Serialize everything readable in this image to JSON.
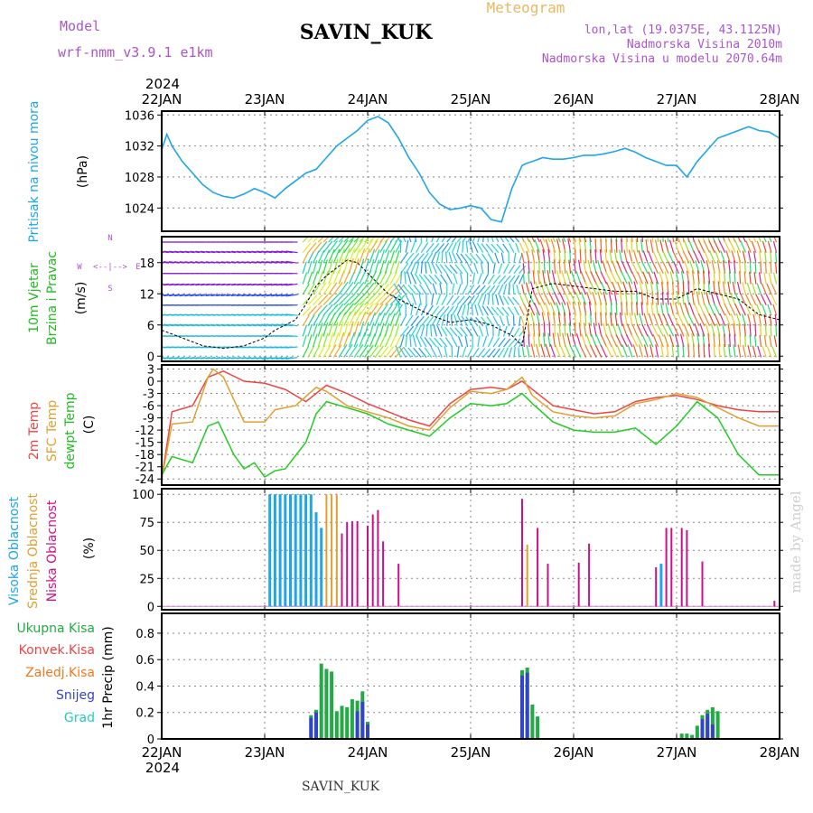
{
  "header": {
    "model_label": "Model",
    "model_name": "wrf-nmm_v3.9.1  e1km",
    "station": "SAVIN_KUK",
    "meteogram_label": "Meteogram",
    "lonlat": "lon,lat (19.0375E, 43.1125N)",
    "altitude": "Nadmorska Visina 2010m",
    "model_altitude": "Nadmorska Visina u modelu 2070.64m",
    "year_top": "2024",
    "year_bottom": "2024",
    "footer_station": "SAVIN_KUK",
    "watermark": "made by Angel"
  },
  "colors": {
    "pressure": "#1ea6e8",
    "t2m": "#ee4444",
    "sfc": "#e0a030",
    "dewpt": "#22cc22",
    "high_cloud": "#1ea6e8",
    "mid_cloud": "#e0a030",
    "low_cloud": "#cc1188",
    "total_rain": "#22aa44",
    "snow": "#3344cc"
  },
  "chart_data": [
    {
      "type": "line",
      "panel": "pressure",
      "ylabel_main": "Pritisak na nivou mora",
      "ylabel_unit": "(hPa)",
      "x_dates": [
        "22JAN",
        "23JAN",
        "24JAN",
        "25JAN",
        "26JAN",
        "27JAN",
        "28JAN"
      ],
      "yticks": [
        1024,
        1028,
        1032,
        1036
      ],
      "ylim": [
        1021,
        1036.5
      ],
      "grid": true,
      "series": [
        {
          "key": "pressure",
          "x": [
            0,
            0.05,
            0.1,
            0.2,
            0.3,
            0.4,
            0.5,
            0.6,
            0.7,
            0.8,
            0.9,
            1.0,
            1.1,
            1.2,
            1.3,
            1.4,
            1.5,
            1.6,
            1.7,
            1.8,
            1.9,
            2.0,
            2.1,
            2.2,
            2.3,
            2.4,
            2.5,
            2.6,
            2.7,
            2.8,
            2.9,
            3.0,
            3.1,
            3.2,
            3.3,
            3.4,
            3.5,
            3.55,
            3.6,
            3.7,
            3.8,
            3.9,
            4.0,
            4.1,
            4.2,
            4.3,
            4.4,
            4.5,
            4.6,
            4.7,
            4.8,
            4.9,
            5.0,
            5.1,
            5.2,
            5.3,
            5.4,
            5.5,
            5.6,
            5.7,
            5.8,
            5.9,
            6.0
          ],
          "y": [
            1031.5,
            1033.5,
            1032,
            1030,
            1028.5,
            1027,
            1026,
            1025.5,
            1025.3,
            1025.8,
            1026.5,
            1026,
            1025.3,
            1026.5,
            1027.5,
            1028.5,
            1029,
            1030.5,
            1032,
            1033,
            1034,
            1035.3,
            1035.8,
            1035,
            1033,
            1030.5,
            1028.5,
            1026,
            1024.5,
            1023.8,
            1024,
            1024.3,
            1024,
            1022.5,
            1022.2,
            1026.5,
            1029.5,
            1029.8,
            1030,
            1030.5,
            1030.3,
            1030.3,
            1030.5,
            1030.8,
            1030.8,
            1031,
            1031.3,
            1031.7,
            1031.2,
            1030.5,
            1030,
            1029.5,
            1029.5,
            1028,
            1030,
            1031.5,
            1033,
            1033.5,
            1034,
            1034.5,
            1034,
            1033.8,
            1033
          ]
        }
      ]
    },
    {
      "type": "line",
      "panel": "wind",
      "ylabel_main": "10m Vjetar",
      "ylabel_sub": "Brzina i Pravac",
      "ylabel_unit": "(m/s)",
      "compass_labels": [
        "W",
        "<--|-->",
        "E",
        "N",
        "S"
      ],
      "yticks": [
        0,
        6,
        12,
        18
      ],
      "ylim": [
        -1,
        23
      ],
      "grid": true,
      "series": [
        {
          "key": "speed",
          "x": [
            0,
            0.2,
            0.4,
            0.6,
            0.8,
            1.0,
            1.1,
            1.2,
            1.3,
            1.4,
            1.5,
            1.6,
            1.7,
            1.8,
            1.9,
            2.0,
            2.1,
            2.2,
            2.4,
            2.6,
            2.8,
            3.0,
            3.2,
            3.4,
            3.5,
            3.6,
            3.8,
            4.0,
            4.2,
            4.4,
            4.6,
            4.8,
            5.0,
            5.2,
            5.4,
            5.6,
            5.8,
            6.0
          ],
          "y": [
            5,
            3.5,
            2,
            1.5,
            2,
            3.5,
            5,
            6,
            7,
            10,
            13.5,
            15.5,
            17,
            18.5,
            18,
            16,
            14,
            12,
            10,
            8,
            6.5,
            7,
            6,
            4,
            2,
            13,
            14,
            13.5,
            13,
            12.5,
            12.5,
            11,
            11,
            13,
            12,
            11,
            8,
            7
          ]
        }
      ]
    },
    {
      "type": "line",
      "panel": "temperature",
      "ylabel_lines": [
        "2m Temp",
        "SFC Temp",
        "dewpt Temp"
      ],
      "ylabel_unit": "(C)",
      "yticks": [
        3,
        0,
        -3,
        -6,
        -9,
        -12,
        -15,
        -18,
        -21,
        -24
      ],
      "ylim": [
        -25.5,
        4
      ],
      "grid": true,
      "series": [
        {
          "key": "t2m",
          "x": [
            0,
            0.1,
            0.3,
            0.45,
            0.6,
            0.8,
            1.0,
            1.2,
            1.4,
            1.6,
            1.8,
            2.0,
            2.2,
            2.4,
            2.6,
            2.8,
            3.0,
            3.2,
            3.35,
            3.5,
            3.6,
            3.8,
            4.0,
            4.2,
            4.4,
            4.6,
            4.8,
            5.0,
            5.2,
            5.4,
            5.6,
            5.8,
            6.0
          ],
          "y": [
            -24,
            -7.5,
            -6,
            1,
            2.5,
            0,
            -0.5,
            -2,
            -5,
            -1,
            -3,
            -5.5,
            -7.5,
            -9.5,
            -11,
            -5.5,
            -2,
            -1.5,
            -2,
            0,
            -2,
            -6,
            -7,
            -8,
            -7.5,
            -5,
            -4,
            -3.5,
            -4.5,
            -6,
            -7,
            -7.5,
            -7.5
          ]
        },
        {
          "key": "sfc",
          "x": [
            0,
            0.1,
            0.3,
            0.45,
            0.5,
            0.6,
            0.8,
            1.0,
            1.1,
            1.3,
            1.5,
            1.6,
            1.8,
            2.0,
            2.2,
            2.4,
            2.6,
            2.8,
            3.0,
            3.2,
            3.35,
            3.5,
            3.6,
            3.8,
            4.0,
            4.2,
            4.4,
            4.6,
            4.8,
            5.0,
            5.2,
            5.4,
            5.6,
            5.8,
            6.0
          ],
          "y": [
            -24,
            -10.5,
            -10,
            1,
            3,
            1,
            -10,
            -10,
            -7,
            -6,
            -1.5,
            -2.5,
            -6,
            -7.5,
            -9,
            -11,
            -12,
            -6.5,
            -2.5,
            -3,
            -2,
            1,
            -3.5,
            -7.5,
            -8.5,
            -9,
            -8.5,
            -5.5,
            -4.5,
            -3,
            -4,
            -6.5,
            -9,
            -11,
            -11
          ]
        },
        {
          "key": "dewpt",
          "x": [
            0,
            0.1,
            0.3,
            0.45,
            0.55,
            0.7,
            0.8,
            0.9,
            1.0,
            1.1,
            1.2,
            1.4,
            1.5,
            1.6,
            1.8,
            2.0,
            2.2,
            2.4,
            2.6,
            2.8,
            3.0,
            3.2,
            3.35,
            3.5,
            3.6,
            3.8,
            4.0,
            4.2,
            4.4,
            4.6,
            4.8,
            5.0,
            5.2,
            5.4,
            5.6,
            5.8,
            6.0
          ],
          "y": [
            -23,
            -18.5,
            -20,
            -11,
            -10,
            -18,
            -21.5,
            -20,
            -23.5,
            -22,
            -21.5,
            -15,
            -8,
            -5,
            -6.5,
            -8,
            -10.5,
            -12,
            -13.5,
            -9,
            -5.5,
            -6,
            -5.5,
            -3,
            -5.5,
            -10,
            -12,
            -12.5,
            -12.5,
            -11.5,
            -15.5,
            -11,
            -5,
            -9,
            -18,
            -23,
            -23
          ]
        }
      ]
    },
    {
      "type": "bar",
      "panel": "clouds",
      "ylabel_lines": [
        "Visoka Oblacnost",
        "Srednja Oblacnost",
        "Niska Oblacnost"
      ],
      "ylabel_unit": "(%)",
      "yticks": [
        0,
        25,
        50,
        75,
        100
      ],
      "ylim": [
        -3,
        105
      ],
      "grid": true,
      "series": [
        {
          "key": "high_cloud",
          "x": [
            1.05,
            1.1,
            1.15,
            1.2,
            1.25,
            1.3,
            1.35,
            1.4,
            1.45,
            1.5,
            1.55,
            4.85
          ],
          "values": [
            100,
            100,
            100,
            100,
            100,
            100,
            100,
            100,
            100,
            84,
            70,
            38
          ]
        },
        {
          "key": "mid_cloud",
          "x": [
            1.6,
            1.65,
            1.7,
            3.55
          ],
          "values": [
            100,
            100,
            100,
            55
          ]
        },
        {
          "key": "low_cloud",
          "x": [
            1.75,
            1.8,
            1.85,
            1.9,
            2.0,
            2.05,
            2.1,
            2.15,
            2.3,
            3.5,
            3.65,
            3.75,
            4.05,
            4.15,
            4.8,
            4.9,
            4.95,
            5.05,
            5.1,
            5.25,
            5.95
          ],
          "values": [
            65,
            75,
            76,
            76,
            72,
            82,
            86,
            58,
            38,
            96,
            70,
            38,
            39,
            56,
            35,
            70,
            70,
            70,
            68,
            40,
            5
          ]
        }
      ]
    },
    {
      "type": "bar",
      "panel": "precip",
      "ylabel_lines": [
        "Ukupna Kisa",
        "Konvek.Kisa",
        "Zaledj.Kisa",
        "Snijeg",
        "Grad"
      ],
      "ylabel_unit": "1hr Precip (mm)",
      "yticks": [
        0,
        0.2,
        0.4,
        0.6,
        0.8
      ],
      "ylim": [
        0,
        0.95
      ],
      "grid": true,
      "series": [
        {
          "key": "total_rain",
          "x": [
            1.45,
            1.5,
            1.55,
            1.6,
            1.65,
            1.7,
            1.75,
            1.8,
            1.85,
            1.9,
            1.95,
            2.0,
            3.5,
            3.55,
            3.6,
            3.65,
            5.05,
            5.1,
            5.15,
            5.2,
            5.25,
            5.3,
            5.35,
            5.4
          ],
          "values": [
            0.18,
            0.22,
            0.57,
            0.53,
            0.51,
            0.21,
            0.25,
            0.24,
            0.3,
            0.29,
            0.36,
            0.13,
            0.52,
            0.54,
            0.26,
            0.17,
            0.04,
            0.04,
            0.03,
            0.1,
            0.18,
            0.22,
            0.24,
            0.21
          ]
        },
        {
          "key": "snow",
          "x": [
            1.45,
            1.5,
            1.9,
            1.95,
            2.0,
            3.5,
            3.55,
            5.25,
            5.3,
            5.35
          ],
          "values": [
            0.16,
            0.2,
            0.21,
            0.28,
            0.11,
            0.48,
            0.5,
            0.15,
            0.19,
            0.11
          ]
        }
      ]
    }
  ]
}
